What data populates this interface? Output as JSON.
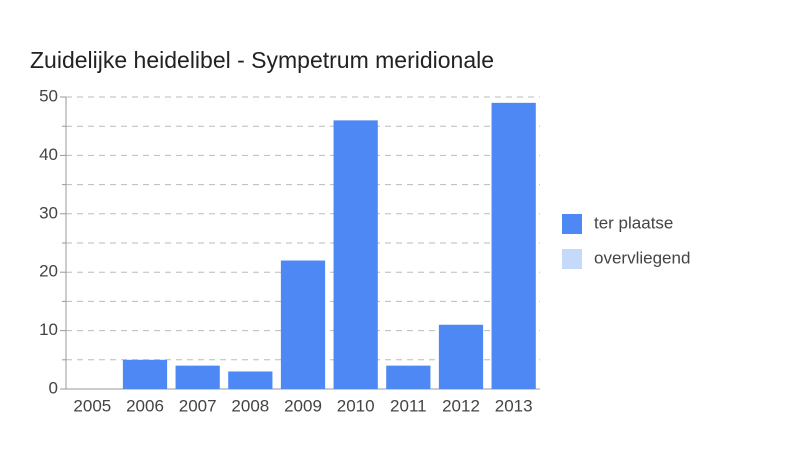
{
  "chart_data": {
    "type": "stacked-bar",
    "title": "Zuidelijke heidelibel - Sympetrum meridionale",
    "categories": [
      "2005",
      "2006",
      "2007",
      "2008",
      "2009",
      "2010",
      "2011",
      "2012",
      "2013"
    ],
    "series": [
      {
        "name": "ter plaatse",
        "color": "#4d88f5",
        "values": [
          0,
          5,
          4,
          3,
          22,
          46,
          4,
          11,
          49
        ]
      },
      {
        "name": "overvliegend",
        "color": "#c5d9fb",
        "values": [
          0,
          0,
          0,
          0,
          0,
          0,
          0,
          0,
          0
        ]
      }
    ],
    "ylim": [
      0,
      50
    ],
    "yticks": [
      0,
      10,
      20,
      30,
      40,
      50
    ],
    "minor_yticks": [
      5,
      15,
      25,
      35,
      45
    ],
    "grid": true,
    "legend": "right"
  }
}
